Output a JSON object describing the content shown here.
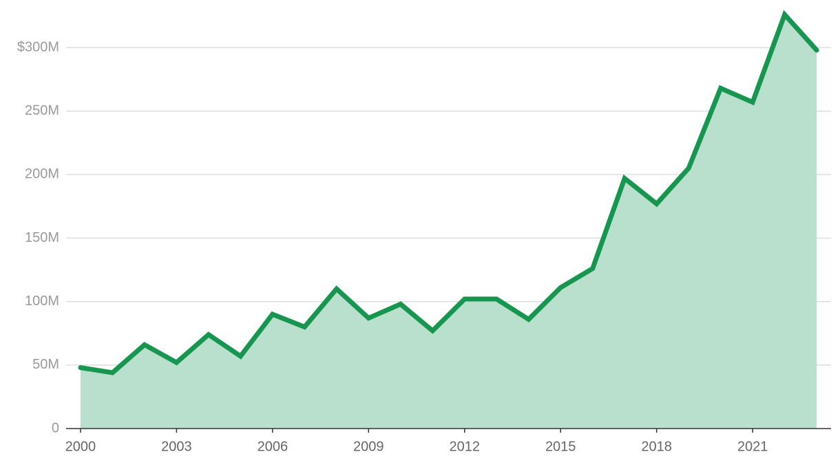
{
  "chart_data": {
    "type": "area",
    "x": [
      2000,
      2001,
      2002,
      2003,
      2004,
      2005,
      2006,
      2007,
      2008,
      2009,
      2010,
      2011,
      2012,
      2013,
      2014,
      2015,
      2016,
      2017,
      2018,
      2019,
      2020,
      2021,
      2022,
      2023
    ],
    "values": [
      48000000,
      44000000,
      66000000,
      52000000,
      74000000,
      57000000,
      90000000,
      80000000,
      110000000,
      87000000,
      98000000,
      77000000,
      102000000,
      102000000,
      86000000,
      111000000,
      126000000,
      197000000,
      177000000,
      205000000,
      268000000,
      257000000,
      326000000,
      298000000
    ],
    "color": "#17964f",
    "area_color": "#b9e0cc",
    "xlim": [
      1999.55,
      2023.45
    ],
    "xticks": [
      2000,
      2003,
      2006,
      2009,
      2012,
      2015,
      2018,
      2021
    ],
    "ylim": [
      0,
      330000000
    ],
    "yticks": [
      0,
      {
        "value": 50000000,
        "label": "50M"
      },
      {
        "value": 100000000,
        "label": "100M"
      },
      {
        "value": 150000000,
        "label": "150M"
      },
      {
        "value": 200000000,
        "label": "200M"
      },
      {
        "value": 250000000,
        "label": "250M"
      },
      {
        "value": 300000000,
        "label": "$300M"
      }
    ],
    "grid": true
  }
}
